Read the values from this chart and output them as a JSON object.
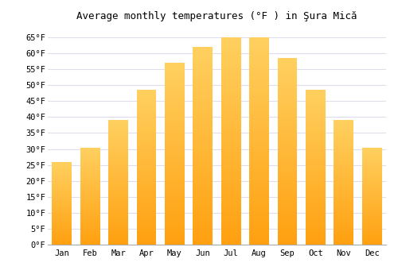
{
  "title": "Average monthly temperatures (°F ) in Şura Mică",
  "months": [
    "Jan",
    "Feb",
    "Mar",
    "Apr",
    "May",
    "Jun",
    "Jul",
    "Aug",
    "Sep",
    "Oct",
    "Nov",
    "Dec"
  ],
  "values": [
    26,
    30.5,
    39,
    48.5,
    57,
    62,
    65,
    65,
    58.5,
    48.5,
    39,
    30.5
  ],
  "bar_color_top": "#FFD060",
  "bar_color_bottom": "#FFA010",
  "background_color": "#ffffff",
  "grid_color": "#ddddee",
  "ylim": [
    0,
    68
  ],
  "yticks": [
    0,
    5,
    10,
    15,
    20,
    25,
    30,
    35,
    40,
    45,
    50,
    55,
    60,
    65
  ],
  "ytick_labels": [
    "0°F",
    "5°F",
    "10°F",
    "15°F",
    "20°F",
    "25°F",
    "30°F",
    "35°F",
    "40°F",
    "45°F",
    "50°F",
    "55°F",
    "60°F",
    "65°F"
  ],
  "title_fontsize": 9,
  "tick_fontsize": 7.5,
  "bar_width": 0.7
}
